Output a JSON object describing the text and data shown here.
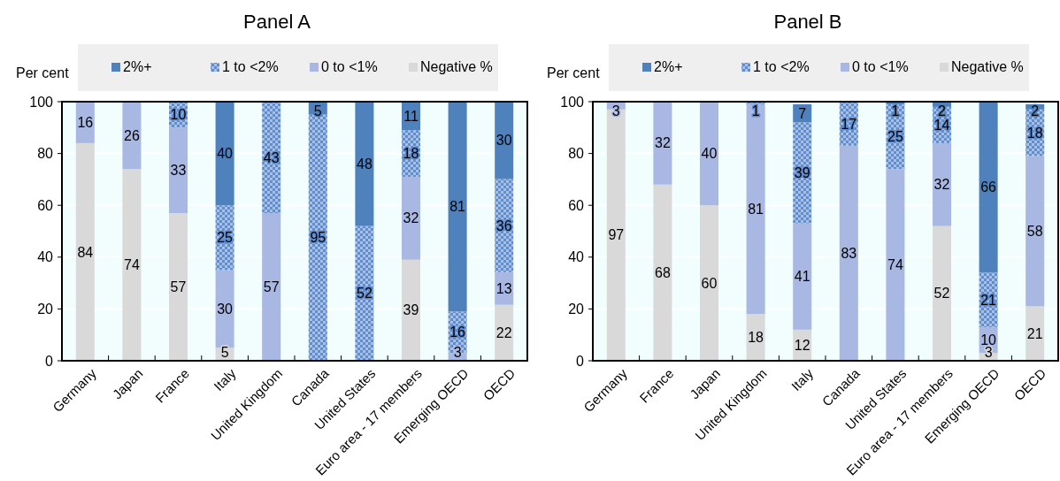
{
  "chart_data": [
    {
      "type": "bar",
      "title": "Panel A",
      "ylabel": "Per cent",
      "stacked": true,
      "legend": "top",
      "grid": "y",
      "ylim": [
        0,
        100
      ],
      "yticks": [
        0,
        20,
        40,
        60,
        80,
        100
      ],
      "categories": [
        "Germany",
        "Japan",
        "France",
        "Italy",
        "United Kingdom",
        "Canada",
        "United States",
        "Euro area - 17 members",
        "Emerging OECD",
        "OECD"
      ],
      "series": [
        {
          "name": "Negative %",
          "color": "#d9d9d9",
          "values": [
            84,
            74,
            57,
            5,
            null,
            null,
            null,
            39,
            null,
            21.6
          ],
          "value_labels": [
            "84",
            "74",
            "57",
            "5",
            null,
            null,
            null,
            "39",
            null,
            "22"
          ]
        },
        {
          "name": "0 to <1%",
          "color": "#a9b8e3",
          "values": [
            16,
            26,
            33,
            30,
            57,
            null,
            null,
            32,
            3,
            12.6
          ],
          "value_labels": [
            "16",
            "26",
            "33",
            "30",
            "57",
            null,
            null,
            "32",
            "3",
            "13"
          ]
        },
        {
          "name": "1 to <2%",
          "color": "#5f8dcf",
          "values": [
            null,
            null,
            10,
            25,
            43,
            95,
            52,
            18,
            16,
            35.9
          ],
          "value_labels": [
            null,
            null,
            "10",
            "25",
            "43",
            "95",
            "52",
            "18",
            "16",
            "36"
          ]
        },
        {
          "name": "2%+",
          "color": "#4f81bd",
          "values": [
            null,
            null,
            null,
            40,
            null,
            5,
            48,
            11,
            81,
            29.9
          ],
          "value_labels": [
            null,
            null,
            null,
            "40",
            null,
            "5",
            "48",
            "11",
            "81",
            "30"
          ]
        }
      ]
    },
    {
      "type": "bar",
      "title": "Panel B",
      "ylabel": "Per cent",
      "stacked": true,
      "data_labels": true,
      "legend": "top",
      "grid": "y",
      "ylim": [
        0,
        100
      ],
      "yticks": [
        0,
        20,
        40,
        60,
        80,
        100
      ],
      "categories": [
        "Germany",
        "France",
        "Japan",
        "United Kingdom",
        "Italy",
        "Canada",
        "United States",
        "Euro area - 17 members",
        "Emerging OECD",
        "OECD"
      ],
      "series": [
        {
          "name": "Negative %",
          "color": "#d9d9d9",
          "values": [
            97,
            68,
            60,
            18,
            12,
            null,
            null,
            52,
            3,
            21
          ]
        },
        {
          "name": "0 to <1%",
          "color": "#a9b8e3",
          "values": [
            3,
            32,
            40,
            81,
            41,
            83,
            74,
            32,
            10,
            58
          ]
        },
        {
          "name": "1 to <2%",
          "color": "#5f8dcf",
          "values": [
            null,
            null,
            null,
            1,
            39,
            17,
            25,
            14,
            21,
            18
          ]
        },
        {
          "name": "2%+",
          "color": "#4f81bd",
          "values": [
            null,
            null,
            null,
            null,
            7,
            null,
            1,
            2,
            66,
            2
          ]
        }
      ]
    }
  ]
}
